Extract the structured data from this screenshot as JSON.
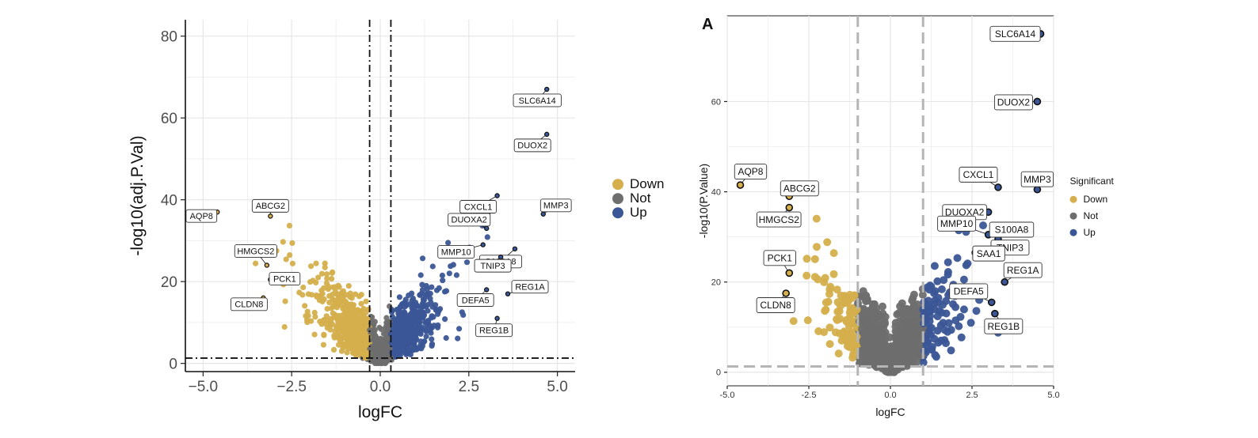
{
  "colors": {
    "down": "#D4AF4C",
    "not": "#6E6E6E",
    "up": "#3B5696"
  },
  "chart_data": [
    {
      "type": "scatter",
      "title": "",
      "xlabel": "logFC",
      "ylabel": "-log10(adj.P.Val)",
      "xlim": [
        -5.5,
        5.5
      ],
      "ylim": [
        -2,
        84
      ],
      "xticks": [
        -5.0,
        -2.5,
        0.0,
        2.5,
        5.0
      ],
      "xtick_labels": [
        "−5.0",
        "−2.5",
        "0.0",
        "2.5",
        "5.0"
      ],
      "yticks": [
        0,
        20,
        40,
        60,
        80
      ],
      "ytick_labels": [
        "0",
        "20",
        "40",
        "60",
        "80"
      ],
      "vlines": [
        -0.3,
        0.3
      ],
      "hline": 1.3,
      "legend": {
        "position": "right",
        "title": "",
        "entries": [
          "Down",
          "Not",
          "Up"
        ]
      },
      "labeled_points": [
        {
          "gene": "SLC6A14",
          "x": 4.7,
          "y": 67,
          "group": "up"
        },
        {
          "gene": "DUOX2",
          "x": 4.7,
          "y": 56,
          "group": "up"
        },
        {
          "gene": "CXCL1",
          "x": 3.3,
          "y": 41,
          "group": "up"
        },
        {
          "gene": "MMP3",
          "x": 4.6,
          "y": 36.5,
          "group": "up"
        },
        {
          "gene": "DUOXA2",
          "x": 3.0,
          "y": 33,
          "group": "up"
        },
        {
          "gene": "S100A8",
          "x": 3.8,
          "y": 28,
          "group": "up"
        },
        {
          "gene": "MMP10",
          "x": 2.9,
          "y": 29,
          "group": "up"
        },
        {
          "gene": "TNIP3",
          "x": 3.4,
          "y": 26,
          "group": "up"
        },
        {
          "gene": "REG1A",
          "x": 3.6,
          "y": 17,
          "group": "up"
        },
        {
          "gene": "DEFA5",
          "x": 3.0,
          "y": 18,
          "group": "up"
        },
        {
          "gene": "REG1B",
          "x": 3.3,
          "y": 11,
          "group": "up"
        },
        {
          "gene": "AQP8",
          "x": -4.6,
          "y": 37,
          "group": "down"
        },
        {
          "gene": "ABCG2",
          "x": -3.1,
          "y": 36,
          "group": "down"
        },
        {
          "gene": "HMGCS2",
          "x": -3.2,
          "y": 24,
          "group": "down"
        },
        {
          "gene": "PCK1",
          "x": -3.1,
          "y": 20.5,
          "group": "down"
        },
        {
          "gene": "CLDN8",
          "x": -3.3,
          "y": 16,
          "group": "down"
        }
      ]
    },
    {
      "type": "scatter",
      "panel_label": "A",
      "title": "",
      "xlabel": "logFC",
      "ylabel": "-log10(P.Value)",
      "xlim": [
        -5.0,
        5.0
      ],
      "ylim": [
        -3,
        79
      ],
      "xticks": [
        -5.0,
        -2.5,
        0.0,
        2.5,
        5.0
      ],
      "xtick_labels": [
        "-5.0",
        "-2.5",
        "0.0",
        "2.5",
        "5.0"
      ],
      "yticks": [
        0,
        20,
        40,
        60
      ],
      "ytick_labels": [
        "0",
        "20",
        "40",
        "60"
      ],
      "vlines": [
        -1.0,
        1.0
      ],
      "hline": 1.3,
      "legend": {
        "position": "right",
        "title": "Significant",
        "entries": [
          "Down",
          "Not",
          "Up"
        ]
      },
      "labeled_points": [
        {
          "gene": "SLC6A14",
          "x": 4.6,
          "y": 75,
          "group": "up"
        },
        {
          "gene": "DUOX2",
          "x": 4.5,
          "y": 60,
          "group": "up"
        },
        {
          "gene": "CXCL1",
          "x": 3.3,
          "y": 41,
          "group": "up"
        },
        {
          "gene": "MMP3",
          "x": 4.5,
          "y": 40.5,
          "group": "up"
        },
        {
          "gene": "DUOXA2",
          "x": 3.0,
          "y": 35.5,
          "group": "up"
        },
        {
          "gene": "MMP10",
          "x": 3.0,
          "y": 30.5,
          "group": "up"
        },
        {
          "gene": "S100A8",
          "x": 3.3,
          "y": 29.5,
          "group": "up"
        },
        {
          "gene": "TNIP3",
          "x": 3.3,
          "y": 28.5,
          "group": "up"
        },
        {
          "gene": "SAA1",
          "x": 2.6,
          "y": 26.5,
          "group": "up"
        },
        {
          "gene": "REG1A",
          "x": 3.5,
          "y": 20,
          "group": "up"
        },
        {
          "gene": "DEFA5",
          "x": 3.1,
          "y": 15.5,
          "group": "up"
        },
        {
          "gene": "REG1B",
          "x": 3.2,
          "y": 13,
          "group": "up"
        },
        {
          "gene": "AQP8",
          "x": -4.6,
          "y": 41.5,
          "group": "down"
        },
        {
          "gene": "ABCG2",
          "x": -3.1,
          "y": 39,
          "group": "down"
        },
        {
          "gene": "HMGCS2",
          "x": -3.1,
          "y": 36.5,
          "group": "down"
        },
        {
          "gene": "PCK1",
          "x": -3.1,
          "y": 22,
          "group": "down"
        },
        {
          "gene": "CLDN8",
          "x": -3.2,
          "y": 17.5,
          "group": "down"
        }
      ]
    }
  ]
}
